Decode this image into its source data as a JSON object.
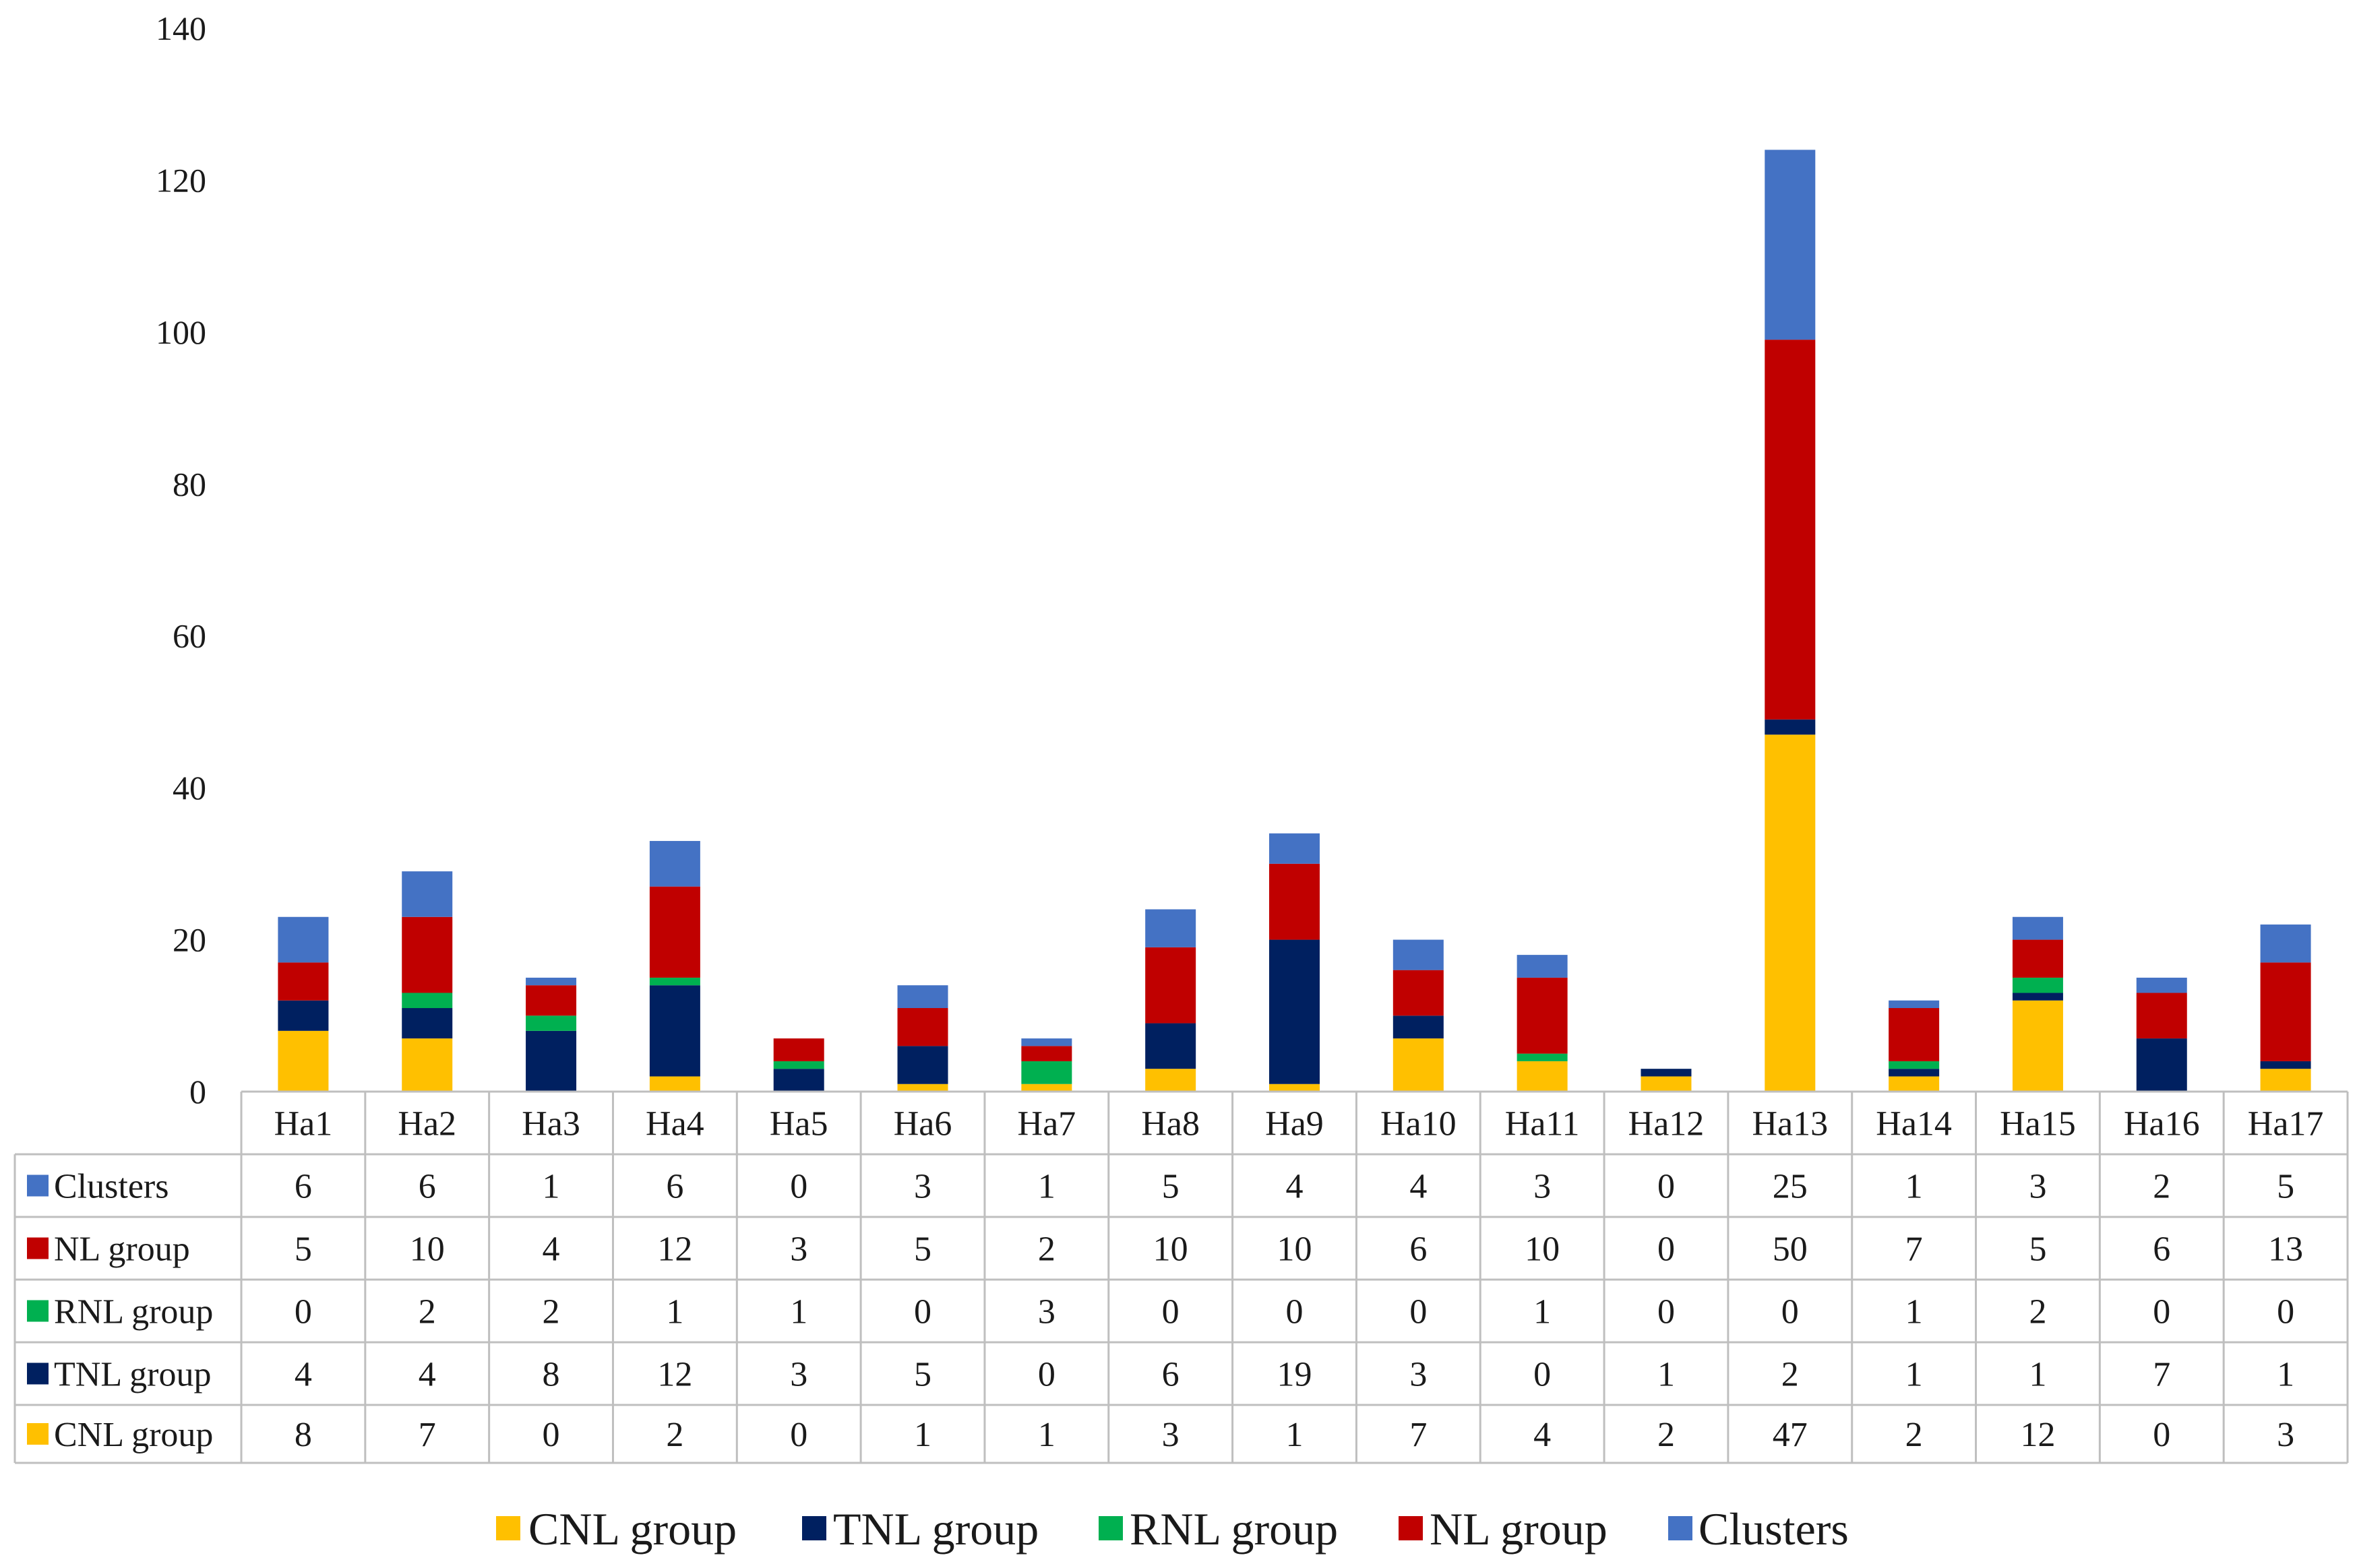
{
  "chart_data": {
    "type": "bar",
    "stacked": true,
    "title": "",
    "xlabel": "",
    "ylabel": "",
    "ylim": [
      0,
      140
    ],
    "yticks": [
      0,
      20,
      40,
      60,
      80,
      100,
      120,
      140
    ],
    "grid": false,
    "legend_position": "bottom",
    "categories": [
      "Ha1",
      "Ha2",
      "Ha3",
      "Ha4",
      "Ha5",
      "Ha6",
      "Ha7",
      "Ha8",
      "Ha9",
      "Ha10",
      "Ha11",
      "Ha12",
      "Ha13",
      "Ha14",
      "Ha15",
      "Ha16",
      "Ha17"
    ],
    "series": [
      {
        "name": "CNL group",
        "color": "#FFC000",
        "values": [
          8,
          7,
          0,
          2,
          0,
          1,
          1,
          3,
          1,
          7,
          4,
          2,
          47,
          2,
          12,
          0,
          3
        ]
      },
      {
        "name": "TNL group",
        "color": "#002060",
        "values": [
          4,
          4,
          8,
          12,
          3,
          5,
          0,
          6,
          19,
          3,
          0,
          1,
          2,
          1,
          1,
          7,
          1
        ]
      },
      {
        "name": "RNL group",
        "color": "#00B050",
        "values": [
          0,
          2,
          2,
          1,
          1,
          0,
          3,
          0,
          0,
          0,
          1,
          0,
          0,
          1,
          2,
          0,
          0
        ]
      },
      {
        "name": "NL group",
        "color": "#C00000",
        "values": [
          5,
          10,
          4,
          12,
          3,
          5,
          2,
          10,
          10,
          6,
          10,
          0,
          50,
          7,
          5,
          6,
          13
        ]
      },
      {
        "name": "Clusters",
        "color": "#4472C4",
        "values": [
          6,
          6,
          1,
          6,
          0,
          3,
          1,
          5,
          4,
          4,
          3,
          0,
          25,
          1,
          3,
          2,
          5
        ]
      }
    ],
    "table_row_order": [
      "Clusters",
      "NL group",
      "RNL group",
      "TNL group",
      "CNL group"
    ]
  }
}
